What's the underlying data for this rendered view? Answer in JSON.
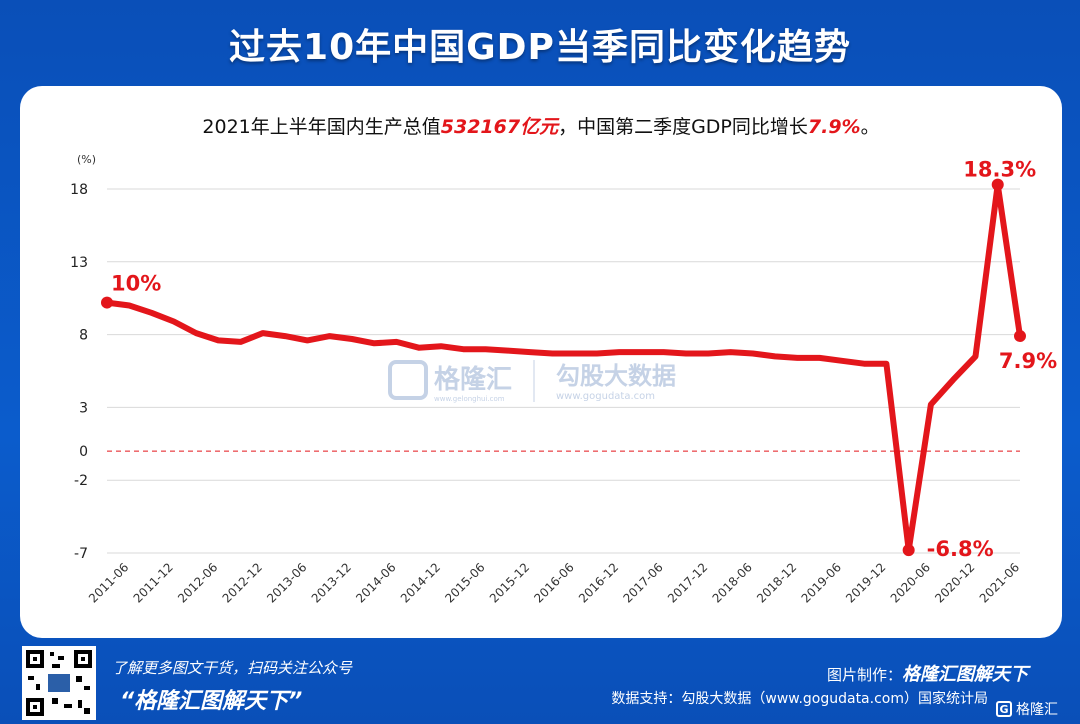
{
  "header": {
    "title": "过去10年中国GDP当季同比变化趋势"
  },
  "subtitle": {
    "part1": "2021年上半年国内生产总值",
    "highlight1": "532167亿元",
    "part2": "，中国第二季度GDP同比增长",
    "highlight2": "7.9%",
    "part3": "。"
  },
  "watermark": {
    "brand1": "格隆汇",
    "url1": "www.gelonghui.com",
    "brand2": "勾股大数据",
    "url2": "www.gogudata.com"
  },
  "footer": {
    "line1": "了解更多图文干货，扫码关注公众号",
    "line2": "“格隆汇图解天下”",
    "credit_label": "图片制作：",
    "credit_brand": "格隆汇图解天下",
    "source": "数据支持：勾股大数据（www.gogudata.com）国家统计局",
    "corner_logo": "格隆汇"
  },
  "colors": {
    "line": "#e3161b",
    "background": "#0b5ccc",
    "zero_line": "#e3161b"
  },
  "chart_data": {
    "type": "line",
    "ylabel": "(%)",
    "yticks": [
      18,
      13,
      8,
      3,
      0,
      -2,
      -7
    ],
    "ylim": [
      -7,
      18
    ],
    "grid": true,
    "x_tick_labels": [
      "2011-06",
      "2011-12",
      "2012-06",
      "2012-12",
      "2013-06",
      "2013-12",
      "2014-06",
      "2014-12",
      "2015-06",
      "2015-12",
      "2016-06",
      "2016-12",
      "2017-06",
      "2017-12",
      "2018-06",
      "2018-12",
      "2019-06",
      "2019-12",
      "2020-06",
      "2020-12",
      "2021-06"
    ],
    "x": [
      "2011-03",
      "2011-06",
      "2011-09",
      "2011-12",
      "2012-03",
      "2012-06",
      "2012-09",
      "2012-12",
      "2013-03",
      "2013-06",
      "2013-09",
      "2013-12",
      "2014-03",
      "2014-06",
      "2014-09",
      "2014-12",
      "2015-03",
      "2015-06",
      "2015-09",
      "2015-12",
      "2016-03",
      "2016-06",
      "2016-09",
      "2016-12",
      "2017-03",
      "2017-06",
      "2017-09",
      "2017-12",
      "2018-03",
      "2018-06",
      "2018-09",
      "2018-12",
      "2019-03",
      "2019-06",
      "2019-09",
      "2019-12",
      "2020-03",
      "2020-06",
      "2020-09",
      "2020-12",
      "2021-03",
      "2021-06"
    ],
    "series": [
      {
        "values": [
          10.2,
          10.0,
          9.5,
          8.9,
          8.1,
          7.6,
          7.5,
          8.1,
          7.9,
          7.6,
          7.9,
          7.7,
          7.4,
          7.5,
          7.1,
          7.2,
          7.0,
          7.0,
          6.9,
          6.8,
          6.7,
          6.7,
          6.7,
          6.8,
          6.8,
          6.8,
          6.7,
          6.7,
          6.8,
          6.7,
          6.5,
          6.4,
          6.4,
          6.2,
          6.0,
          6.0,
          -6.8,
          3.2,
          4.9,
          6.5,
          18.3,
          7.9
        ]
      }
    ],
    "annotations": [
      {
        "label": "10%",
        "index": 0
      },
      {
        "label": "-6.8%",
        "index": 36
      },
      {
        "label": "18.3%",
        "index": 40
      },
      {
        "label": "7.9%",
        "index": 41
      }
    ]
  }
}
